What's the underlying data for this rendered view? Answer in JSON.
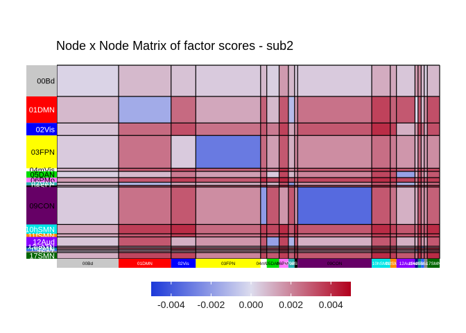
{
  "chart_data": {
    "type": "heatmap",
    "title": "Node x Node Matrix of factor scores - sub2",
    "xlabel": "",
    "ylabel": "",
    "networks": [
      {
        "label": "00Bd",
        "color": "#c8c8c8",
        "text_color": "#000000"
      },
      {
        "label": "01DMN",
        "color": "#ff0000",
        "text_color": "#ffffff"
      },
      {
        "label": "02Vis",
        "color": "#0000ff",
        "text_color": "#ffffff"
      },
      {
        "label": "03FPN",
        "color": "#ffff00",
        "text_color": "#000000"
      },
      {
        "label": "04mVis",
        "color": "#ffffff",
        "text_color": "#000000"
      },
      {
        "label": "05DAN",
        "color": "#00dd00",
        "text_color": "#000000"
      },
      {
        "label": "06PMo",
        "color": "#ff77ff",
        "text_color": "#000000"
      },
      {
        "label": "07VAN",
        "color": "#2ab0b0",
        "text_color": "#ffffff"
      },
      {
        "label": "08SLC",
        "color": "#000000",
        "text_color": "#ffffff"
      },
      {
        "label": "09CON",
        "color": "#660066",
        "text_color": "#000000"
      },
      {
        "label": "10hSMN",
        "color": "#00e5e5",
        "text_color": "#ffffff"
      },
      {
        "label": "11fSMN",
        "color": "#ff8c00",
        "text_color": "#ffffff"
      },
      {
        "label": "12Aud",
        "color": "#8800ff",
        "text_color": "#ffffff"
      },
      {
        "label": "13vATN",
        "color": "#000088",
        "text_color": "#ffffff"
      },
      {
        "label": "14mSMN",
        "color": "#008888",
        "text_color": "#ffffff"
      },
      {
        "label": "15RSN",
        "color": "#2266ff",
        "text_color": "#ffffff"
      },
      {
        "label": "16AT",
        "color": "#888888",
        "text_color": "#ffffff"
      },
      {
        "label": "17SMN",
        "color": "#006600",
        "text_color": "#ffffff"
      }
    ],
    "x_tick_labels": [
      "00Bd",
      "01DMN",
      "02Vis",
      "03FPN",
      "04mVis",
      "05DAN",
      "06PMo",
      "07VAN",
      "08SLC",
      "09CON",
      "10hSMN",
      "11fSMN",
      "12Aud",
      "13vATN",
      "14mSMN",
      "15RSN",
      "16AT",
      "17SMN"
    ],
    "y_tick_labels": [
      "00Bd",
      "01DMN",
      "02Vis",
      "03FPN",
      "04mVis",
      "05DAN",
      "06PMo",
      "07VAN",
      "08SLC",
      "09CON",
      "10hSMN",
      "11fSMN",
      "12Aud",
      "13vATN",
      "14mSMN",
      "15RSN",
      "16AT",
      "17SMN"
    ],
    "sizes": [
      20,
      17,
      8,
      21,
      2,
      4,
      3,
      2,
      1,
      24,
      6,
      2,
      6,
      1,
      1,
      1,
      1,
      4
    ],
    "values": [
      [
        0.0002,
        0.0008,
        0.0006,
        0.0004,
        0.0008,
        0.0003,
        0.0015,
        0.0008,
        0.0004,
        0.0004,
        0.0011,
        0.0012,
        0.0005,
        0.0015,
        0.0018,
        0.0008,
        0.0003,
        0.0008
      ],
      [
        0.0008,
        -0.0015,
        0.0026,
        0.0012,
        0.0028,
        0.0008,
        0.003,
        -0.001,
        0.0016,
        0.0024,
        0.0035,
        0.0028,
        0.003,
        0.0001,
        0.003,
        0.0008,
        0.0018,
        0.0032
      ],
      [
        0.0006,
        0.0026,
        0.0032,
        0.0024,
        0.003,
        0.0022,
        0.0035,
        0.0012,
        0.002,
        0.003,
        0.004,
        0.0035,
        0.001,
        0.0016,
        0.0036,
        0.0025,
        0.0012,
        0.0032
      ],
      [
        0.0004,
        0.0024,
        0.0004,
        -0.003,
        0.0026,
        0.0014,
        0.003,
        0.001,
        0.002,
        0.0018,
        0.0025,
        0.0022,
        0.0016,
        0.001,
        0.0026,
        0.0012,
        0.0015,
        0.0018
      ],
      [
        0.001,
        0.003,
        0.0034,
        0.0028,
        0.003,
        0.0024,
        0.004,
        0.002,
        0.0024,
        0.003,
        0.0036,
        0.0034,
        0.003,
        0.002,
        0.0036,
        0.003,
        0.0024,
        0.0034
      ],
      [
        0.0003,
        0.0008,
        0.0022,
        0.0014,
        0.0024,
        0.0004,
        0.0034,
        0.0008,
        0.0016,
        0.002,
        0.0034,
        0.003,
        -0.0018,
        0.001,
        0.0032,
        0.002,
        0.0012,
        0.003
      ],
      [
        0.0014,
        0.003,
        0.0036,
        0.003,
        0.004,
        0.0034,
        0.0042,
        0.003,
        0.003,
        0.0034,
        0.004,
        0.0038,
        0.0034,
        0.0024,
        0.004,
        0.0032,
        0.003,
        0.0036
      ],
      [
        0.0008,
        -0.001,
        0.0012,
        0.001,
        0.002,
        0.0008,
        0.003,
        -0.002,
        0.0012,
        0.0016,
        0.003,
        0.0026,
        -0.0012,
        0.0008,
        0.003,
        0.0016,
        0.0012,
        0.0026
      ],
      [
        0.001,
        0.003,
        0.0034,
        0.003,
        0.0036,
        0.003,
        0.004,
        0.003,
        0.0036,
        0.003,
        0.004,
        0.0036,
        0.003,
        0.0028,
        0.004,
        0.003,
        0.003,
        0.0036
      ],
      [
        0.0004,
        0.0024,
        0.003,
        0.0018,
        -0.002,
        0.003,
        0.0016,
        0.003,
        0.0016,
        -0.0035,
        0.003,
        0.0024,
        0.001,
        0.0012,
        0.003,
        0.0018,
        0.0016,
        0.0028
      ],
      [
        0.0012,
        0.0036,
        0.004,
        0.0026,
        0.0036,
        0.0034,
        0.004,
        0.003,
        0.004,
        0.003,
        0.004,
        0.0036,
        0.003,
        0.0026,
        0.004,
        0.003,
        0.003,
        0.004
      ],
      [
        0.0012,
        0.003,
        0.0036,
        0.0024,
        0.0034,
        0.003,
        0.0038,
        0.0026,
        0.0036,
        0.0024,
        0.0036,
        0.003,
        0.003,
        0.0024,
        0.0036,
        0.0026,
        0.003,
        0.0036
      ],
      [
        0.0005,
        0.003,
        0.001,
        0.0016,
        0.003,
        -0.0018,
        0.0034,
        -0.0012,
        0.003,
        0.001,
        0.003,
        0.003,
        0.001,
        0.001,
        0.003,
        0.0016,
        0.0012,
        0.003
      ],
      [
        0.0015,
        0.0012,
        0.002,
        0.001,
        0.002,
        0.001,
        0.003,
        0.001,
        0.0028,
        0.0012,
        0.0026,
        0.0024,
        0.001,
        0.002,
        0.003,
        -0.002,
        0.0012,
        0.0024
      ],
      [
        0.0018,
        0.003,
        0.0036,
        0.0026,
        0.0036,
        0.0032,
        0.004,
        0.003,
        0.004,
        0.003,
        0.004,
        0.0036,
        0.003,
        0.003,
        0.004,
        0.003,
        0.003,
        0.004
      ],
      [
        0.0008,
        0.001,
        0.0024,
        0.0012,
        0.003,
        0.002,
        0.0034,
        0.0016,
        0.003,
        0.0018,
        0.003,
        0.0026,
        0.0016,
        -0.002,
        0.003,
        0.002,
        0.0012,
        0.003
      ],
      [
        0.0004,
        0.002,
        0.0014,
        0.0016,
        0.0024,
        0.0012,
        0.003,
        0.0012,
        0.003,
        0.0016,
        0.003,
        0.003,
        0.0012,
        0.0012,
        0.003,
        0.0012,
        0.0018,
        0.003
      ],
      [
        0.001,
        0.0034,
        0.0034,
        0.002,
        0.0034,
        0.003,
        0.0036,
        0.0028,
        0.0036,
        0.003,
        0.004,
        0.0036,
        0.003,
        0.0024,
        0.004,
        0.003,
        0.003,
        0.004
      ]
    ],
    "colorbar": {
      "range": [
        -0.005,
        0.005
      ],
      "ticks": [
        -0.004,
        -0.002,
        0.0,
        0.002,
        0.004
      ],
      "tick_labels": [
        "-0.004",
        "-0.002",
        "0.000",
        "0.002",
        "0.004"
      ],
      "colors": [
        "#1c39d9",
        "#dcdcee",
        "#b2001c"
      ]
    },
    "grid": true,
    "legend": "bottom"
  }
}
